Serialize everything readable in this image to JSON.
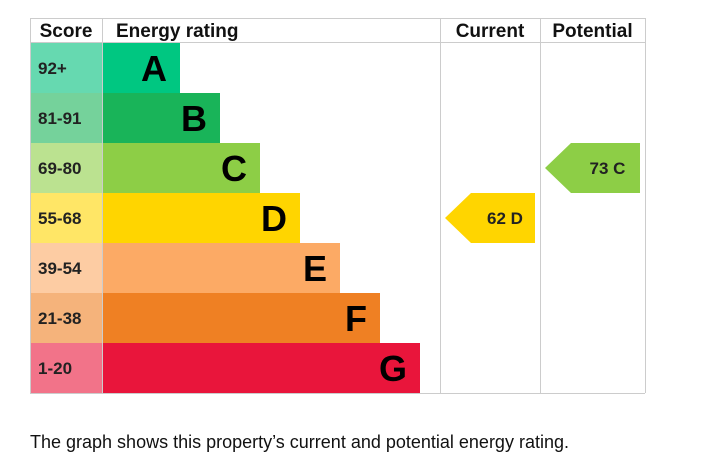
{
  "chart_data": {
    "type": "bar",
    "headers": {
      "score": "Score",
      "rating": "Energy rating",
      "current": "Current",
      "potential": "Potential"
    },
    "bands": [
      {
        "score": "92+",
        "letter": "A",
        "bar_color": "#00c781",
        "score_color": "#66d9b0"
      },
      {
        "score": "81-91",
        "letter": "B",
        "bar_color": "#19b459",
        "score_color": "#75d29b"
      },
      {
        "score": "69-80",
        "letter": "C",
        "bar_color": "#8dce46",
        "score_color": "#bbe290"
      },
      {
        "score": "55-68",
        "letter": "D",
        "bar_color": "#ffd500",
        "score_color": "#ffe666"
      },
      {
        "score": "39-54",
        "letter": "E",
        "bar_color": "#fcaa65",
        "score_color": "#fdcca3"
      },
      {
        "score": "21-38",
        "letter": "F",
        "bar_color": "#ef8023",
        "score_color": "#f5b37b"
      },
      {
        "score": "1-20",
        "letter": "G",
        "bar_color": "#e9153b",
        "score_color": "#f27389"
      }
    ],
    "current": {
      "value": 62,
      "letter": "D",
      "label": "62  D",
      "color": "#ffd500"
    },
    "potential": {
      "value": 73,
      "letter": "C",
      "label": "73  C",
      "color": "#8dce46"
    }
  },
  "caption": "The graph shows this property’s current and potential energy rating."
}
